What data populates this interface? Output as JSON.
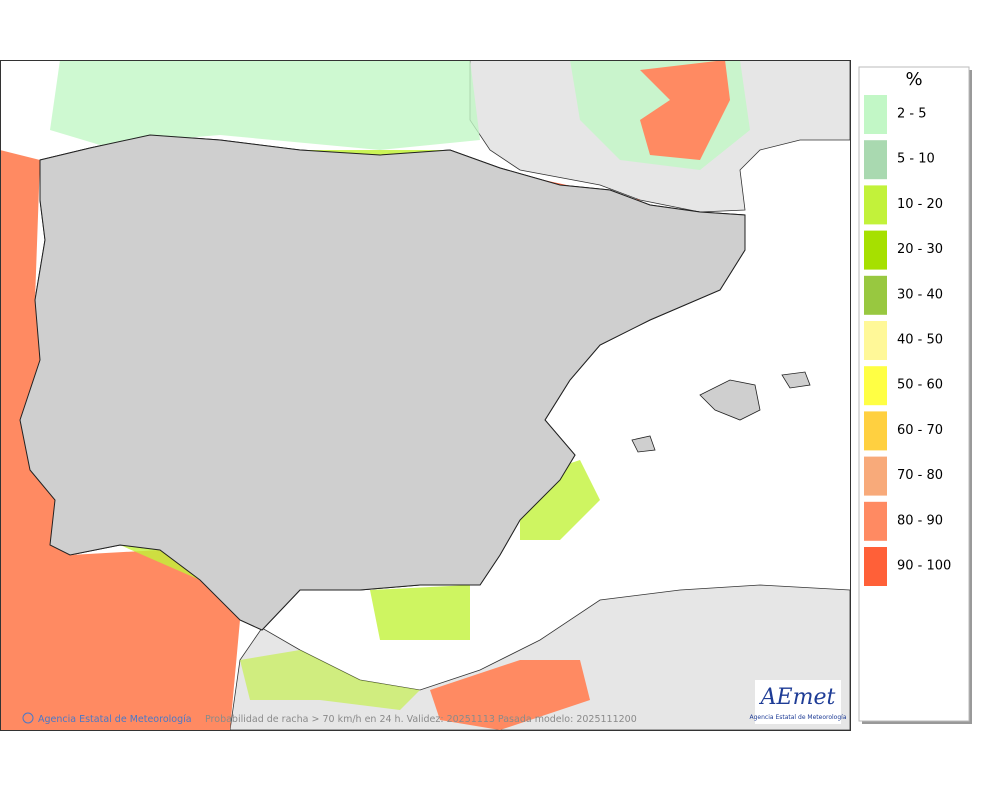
{
  "map": {
    "caption": "Probabilidad de racha > 70 km/h en 24 h. Validez: 20251113 Pasada modelo: 2025111200",
    "credit": "Agencia Estatal de Meteorología",
    "logo": {
      "name": "AEmet",
      "subtitle": "Agencia Estatal de Meteorología"
    }
  },
  "legend": {
    "title": "%",
    "items": [
      {
        "label": "2 - 5",
        "color": "#c2f7c6"
      },
      {
        "label": "5 - 10",
        "color": "#a9d9b0"
      },
      {
        "label": "10 - 20",
        "color": "#c2f23a"
      },
      {
        "label": "20 - 30",
        "color": "#a6e000"
      },
      {
        "label": "30 - 40",
        "color": "#98c840"
      },
      {
        "label": "40 - 50",
        "color": "#fff898"
      },
      {
        "label": "50 - 60",
        "color": "#ffff44"
      },
      {
        "label": "60 - 70",
        "color": "#ffd040"
      },
      {
        "label": "70 - 80",
        "color": "#f8aa7a"
      },
      {
        "label": "80 - 90",
        "color": "#ff8a62"
      },
      {
        "label": "90 - 100",
        "color": "#ff6038"
      }
    ]
  }
}
